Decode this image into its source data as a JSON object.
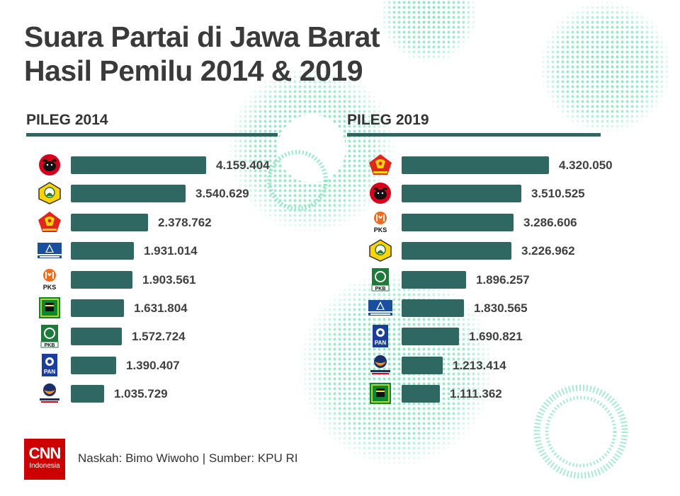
{
  "title": {
    "line1": "Suara Partai di Jawa Barat",
    "line2": "Hasil Pemilu 2014 & 2019"
  },
  "colors": {
    "bar": "#2f6762",
    "rule": "#2e6660",
    "dots": "#8fe3c2",
    "brand": "#cc0000"
  },
  "chart_data": [
    {
      "type": "bar",
      "orientation": "horizontal",
      "title": "PILEG 2014",
      "categories": [
        "PDI-P",
        "Golkar",
        "Gerindra",
        "Demokrat",
        "PKS",
        "PPP",
        "PKB",
        "PAN",
        "Nasdem"
      ],
      "values": [
        4159404,
        3540629,
        2378762,
        1931014,
        1903561,
        1631804,
        1572724,
        1390407,
        1035729
      ],
      "labels": [
        "4.159.404",
        "3.540.629",
        "2.378.762",
        "1.931.014",
        "1.903.561",
        "1.631.804",
        "1.572.724",
        "1.390.407",
        "1.035.729"
      ],
      "logos": [
        "pdip-icon",
        "golkar-icon",
        "gerindra-icon",
        "demokrat-icon",
        "pks-icon",
        "ppp-icon",
        "pkb-icon",
        "pan-icon",
        "nasdem-icon"
      ],
      "xlim": [
        0,
        4320050
      ]
    },
    {
      "type": "bar",
      "orientation": "horizontal",
      "title": "PILEG 2019",
      "categories": [
        "Gerindra",
        "PDI-P",
        "PKS",
        "Golkar",
        "PKB",
        "Demokrat",
        "PAN",
        "Nasdem",
        "PPP"
      ],
      "values": [
        4320050,
        3510525,
        3286606,
        3226962,
        1896257,
        1830565,
        1690821,
        1213414,
        1111362
      ],
      "labels": [
        "4.320.050",
        "3.510.525",
        "3.286.606",
        "3.226.962",
        "1.896.257",
        "1.830.565",
        "1.690.821",
        "1.213.414",
        "1.111.362"
      ],
      "logos": [
        "gerindra-icon",
        "pdip-icon",
        "pks-icon",
        "golkar-icon",
        "pkb-icon",
        "demokrat-icon",
        "pan-icon",
        "nasdem-icon",
        "ppp-icon"
      ],
      "xlim": [
        0,
        4320050
      ]
    }
  ],
  "brand": {
    "line1": "CNN",
    "line2": "Indonesia"
  },
  "footer": {
    "credit": "Naskah:  Bimo Wiwoho | Sumber: KPU RI"
  }
}
